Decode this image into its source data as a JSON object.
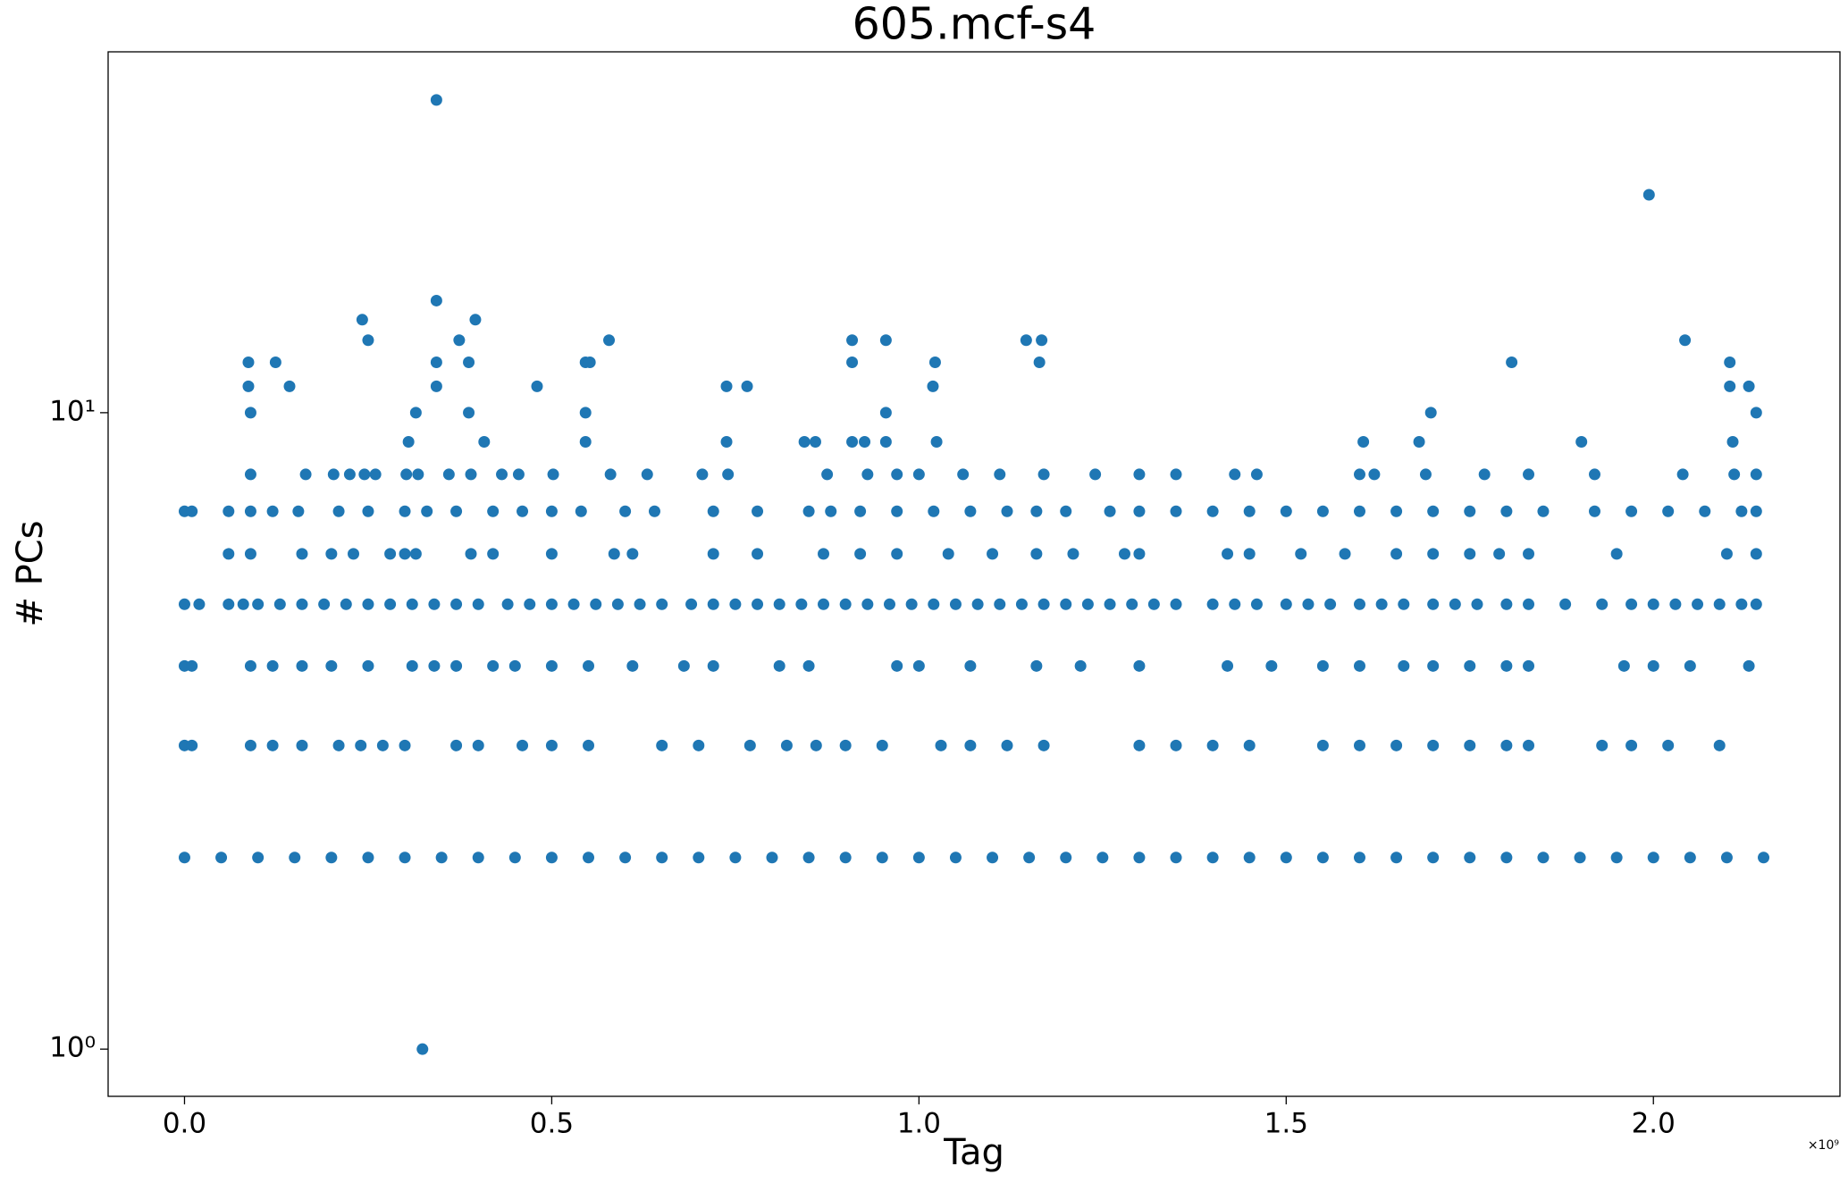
{
  "chart_data": {
    "type": "scatter",
    "title": "605.mcf-s4",
    "xlabel": "Tag",
    "ylabel": "# PCs",
    "x_offset_label": "×10⁹",
    "color": "#1f77b4",
    "ylog": true,
    "xlim": [
      -0.104,
      2.254
    ],
    "ylim": [
      0.843,
      36.9
    ],
    "xticks": [
      {
        "value": 0,
        "label": "0.0"
      },
      {
        "value": 0.5,
        "label": "0.5"
      },
      {
        "value": 1,
        "label": "1.0"
      },
      {
        "value": 1.5,
        "label": "1.5"
      },
      {
        "value": 2,
        "label": "2.0"
      }
    ],
    "yticks": [
      {
        "value": 1,
        "label": "10⁰"
      },
      {
        "value": 10,
        "label": "10¹"
      }
    ],
    "x": [
      0.324,
      0.343,
      1.994,
      0.343,
      0.242,
      0.396,
      0.25,
      0.374,
      0.578,
      0.909,
      0.955,
      1.146,
      1.167,
      2.043,
      0.087,
      0.124,
      0.343,
      0.387,
      0.546,
      0.552,
      0.909,
      1.022,
      1.164,
      1.807,
      2.104,
      0.087,
      0.143,
      0.343,
      0.48,
      0.738,
      0.766,
      1.019,
      2.104,
      2.13,
      0.09,
      0.315,
      0.387,
      0.546,
      0.955,
      1.697,
      2.14,
      0.305,
      0.408,
      0.546,
      0.738,
      0.844,
      0.859,
      0.909,
      0.926,
      0.955,
      1.024,
      1.605,
      1.681,
      1.902,
      2.108,
      0.09,
      0.165,
      0.203,
      0.225,
      0.245,
      0.26,
      0.302,
      0.318,
      0.36,
      0.39,
      0.432,
      0.455,
      0.502,
      0.58,
      0.63,
      0.705,
      0.74,
      0.875,
      0.93,
      0.97,
      1.0,
      1.06,
      1.11,
      1.17,
      1.24,
      1.3,
      1.35,
      1.43,
      1.46,
      1.6,
      1.62,
      1.69,
      1.77,
      1.83,
      1.92,
      2.04,
      2.11,
      2.14,
      0.0,
      0.01,
      0.06,
      0.09,
      0.12,
      0.155,
      0.21,
      0.25,
      0.3,
      0.33,
      0.37,
      0.42,
      0.46,
      0.5,
      0.54,
      0.6,
      0.64,
      0.72,
      0.78,
      0.85,
      0.88,
      0.92,
      0.97,
      1.02,
      1.07,
      1.12,
      1.16,
      1.2,
      1.26,
      1.3,
      1.35,
      1.4,
      1.45,
      1.5,
      1.55,
      1.6,
      1.65,
      1.7,
      1.75,
      1.8,
      1.85,
      1.92,
      1.97,
      2.02,
      2.07,
      2.12,
      2.14,
      0.06,
      0.09,
      0.16,
      0.2,
      0.23,
      0.28,
      0.3,
      0.315,
      0.39,
      0.42,
      0.5,
      0.585,
      0.61,
      0.72,
      0.78,
      0.87,
      0.92,
      0.97,
      1.04,
      1.1,
      1.16,
      1.21,
      1.28,
      1.3,
      1.42,
      1.45,
      1.52,
      1.58,
      1.65,
      1.7,
      1.75,
      1.79,
      1.83,
      1.95,
      2.1,
      2.14,
      0.0,
      0.02,
      0.06,
      0.08,
      0.1,
      0.13,
      0.16,
      0.19,
      0.22,
      0.25,
      0.28,
      0.31,
      0.34,
      0.37,
      0.4,
      0.44,
      0.47,
      0.5,
      0.53,
      0.56,
      0.59,
      0.62,
      0.65,
      0.69,
      0.72,
      0.75,
      0.78,
      0.81,
      0.84,
      0.87,
      0.9,
      0.93,
      0.96,
      0.99,
      1.02,
      1.05,
      1.08,
      1.11,
      1.14,
      1.17,
      1.2,
      1.23,
      1.26,
      1.29,
      1.32,
      1.35,
      1.4,
      1.43,
      1.46,
      1.5,
      1.53,
      1.56,
      1.6,
      1.63,
      1.66,
      1.7,
      1.73,
      1.76,
      1.8,
      1.83,
      1.88,
      1.93,
      1.97,
      2.0,
      2.03,
      2.06,
      2.09,
      2.12,
      2.14,
      0.0,
      0.01,
      0.09,
      0.12,
      0.16,
      0.2,
      0.25,
      0.31,
      0.34,
      0.37,
      0.42,
      0.45,
      0.5,
      0.55,
      0.61,
      0.68,
      0.72,
      0.81,
      0.85,
      0.97,
      1.0,
      1.07,
      1.16,
      1.22,
      1.3,
      1.42,
      1.48,
      1.55,
      1.6,
      1.66,
      1.7,
      1.75,
      1.8,
      1.83,
      1.96,
      2.0,
      2.05,
      2.13,
      0.0,
      0.01,
      0.09,
      0.12,
      0.16,
      0.21,
      0.24,
      0.27,
      0.3,
      0.37,
      0.4,
      0.46,
      0.5,
      0.55,
      0.65,
      0.7,
      0.77,
      0.82,
      0.86,
      0.9,
      0.95,
      1.03,
      1.07,
      1.12,
      1.17,
      1.3,
      1.35,
      1.4,
      1.45,
      1.55,
      1.6,
      1.65,
      1.7,
      1.75,
      1.8,
      1.83,
      1.93,
      1.97,
      2.02,
      2.09,
      0.0,
      0.05,
      0.1,
      0.15,
      0.2,
      0.25,
      0.3,
      0.35,
      0.4,
      0.45,
      0.5,
      0.55,
      0.6,
      0.65,
      0.7,
      0.75,
      0.8,
      0.85,
      0.9,
      0.95,
      1.0,
      1.05,
      1.1,
      1.15,
      1.2,
      1.25,
      1.3,
      1.35,
      1.4,
      1.45,
      1.5,
      1.55,
      1.6,
      1.65,
      1.7,
      1.75,
      1.8,
      1.85,
      1.9,
      1.95,
      2.0,
      2.05,
      2.1,
      2.15
    ],
    "values": [
      1,
      31,
      22,
      15,
      14,
      14,
      13,
      13,
      13,
      13,
      13,
      13,
      13,
      13,
      12,
      12,
      12,
      12,
      12,
      12,
      12,
      12,
      12,
      12,
      12,
      11,
      11,
      11,
      11,
      11,
      11,
      11,
      11,
      11,
      10,
      10,
      10,
      10,
      10,
      10,
      10,
      9,
      9,
      9,
      9,
      9,
      9,
      9,
      9,
      9,
      9,
      9,
      9,
      9,
      9,
      8,
      8,
      8,
      8,
      8,
      8,
      8,
      8,
      8,
      8,
      8,
      8,
      8,
      8,
      8,
      8,
      8,
      8,
      8,
      8,
      8,
      8,
      8,
      8,
      8,
      8,
      8,
      8,
      8,
      8,
      8,
      8,
      8,
      8,
      8,
      8,
      8,
      8,
      7,
      7,
      7,
      7,
      7,
      7,
      7,
      7,
      7,
      7,
      7,
      7,
      7,
      7,
      7,
      7,
      7,
      7,
      7,
      7,
      7,
      7,
      7,
      7,
      7,
      7,
      7,
      7,
      7,
      7,
      7,
      7,
      7,
      7,
      7,
      7,
      7,
      7,
      7,
      7,
      7,
      7,
      7,
      7,
      7,
      7,
      7,
      6,
      6,
      6,
      6,
      6,
      6,
      6,
      6,
      6,
      6,
      6,
      6,
      6,
      6,
      6,
      6,
      6,
      6,
      6,
      6,
      6,
      6,
      6,
      6,
      6,
      6,
      6,
      6,
      6,
      6,
      6,
      6,
      6,
      6,
      6,
      6,
      5,
      5,
      5,
      5,
      5,
      5,
      5,
      5,
      5,
      5,
      5,
      5,
      5,
      5,
      5,
      5,
      5,
      5,
      5,
      5,
      5,
      5,
      5,
      5,
      5,
      5,
      5,
      5,
      5,
      5,
      5,
      5,
      5,
      5,
      5,
      5,
      5,
      5,
      5,
      5,
      5,
      5,
      5,
      5,
      5,
      5,
      5,
      5,
      5,
      5,
      5,
      5,
      5,
      5,
      5,
      5,
      5,
      5,
      5,
      5,
      5,
      5,
      5,
      5,
      5,
      5,
      5,
      5,
      5,
      4,
      4,
      4,
      4,
      4,
      4,
      4,
      4,
      4,
      4,
      4,
      4,
      4,
      4,
      4,
      4,
      4,
      4,
      4,
      4,
      4,
      4,
      4,
      4,
      4,
      4,
      4,
      4,
      4,
      4,
      4,
      4,
      4,
      4,
      4,
      4,
      4,
      4,
      3,
      3,
      3,
      3,
      3,
      3,
      3,
      3,
      3,
      3,
      3,
      3,
      3,
      3,
      3,
      3,
      3,
      3,
      3,
      3,
      3,
      3,
      3,
      3,
      3,
      3,
      3,
      3,
      3,
      3,
      3,
      3,
      3,
      3,
      3,
      3,
      3,
      3,
      3,
      3,
      2,
      2,
      2,
      2,
      2,
      2,
      2,
      2,
      2,
      2,
      2,
      2,
      2,
      2,
      2,
      2,
      2,
      2,
      2,
      2,
      2,
      2,
      2,
      2,
      2,
      2,
      2,
      2,
      2,
      2,
      2,
      2,
      2,
      2,
      2,
      2,
      2,
      2,
      2,
      2,
      2,
      2,
      2,
      2
    ]
  }
}
